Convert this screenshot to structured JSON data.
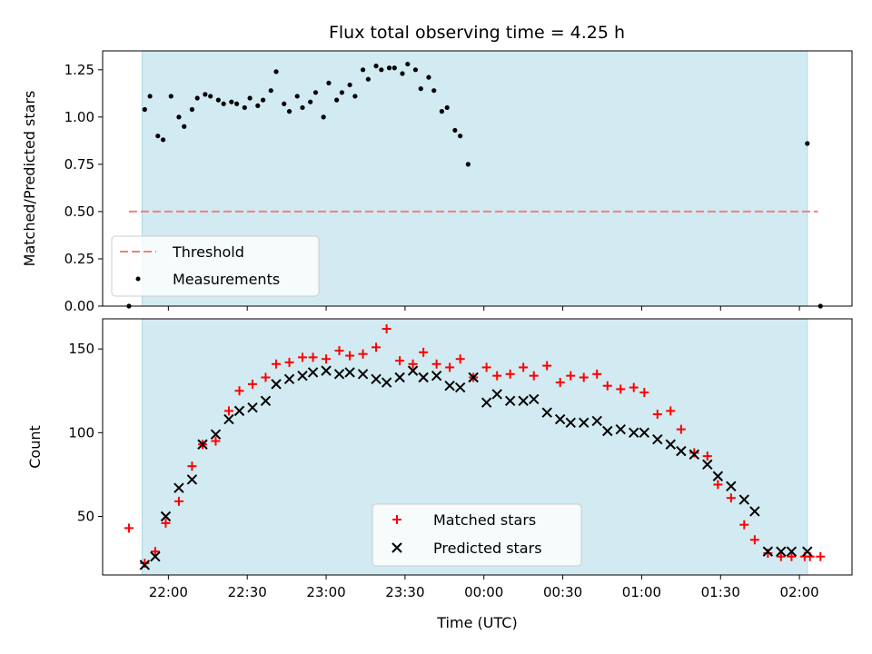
{
  "chart_data": [
    {
      "type": "scatter",
      "title": "Flux total observing time = 4.25 h",
      "ylabel": "Matched/Predicted stars",
      "xlabel": "",
      "xlim": [
        "21:35",
        "02:20"
      ],
      "ylim": [
        0,
        1.35
      ],
      "yticks": [
        "0.00",
        "0.25",
        "0.50",
        "0.75",
        "1.00",
        "1.25"
      ],
      "shaded_interval": [
        "21:50",
        "02:03"
      ],
      "shade_color": "#add8e6",
      "threshold": {
        "value": 0.5,
        "x_range": [
          "21:45",
          "02:07"
        ],
        "color": "#f08080"
      },
      "legend": {
        "position": "lower-left",
        "entries": [
          "Threshold",
          "Measurements"
        ]
      },
      "series": [
        {
          "name": "Measurements",
          "marker": "dot",
          "color": "#000000",
          "x": [
            "21:45",
            "21:51",
            "21:53",
            "21:56",
            "21:58",
            "22:01",
            "22:04",
            "22:06",
            "22:09",
            "22:11",
            "22:14",
            "22:16",
            "22:19",
            "22:21",
            "22:24",
            "22:26",
            "22:29",
            "22:31",
            "22:34",
            "22:36",
            "22:39",
            "22:41",
            "22:44",
            "22:46",
            "22:49",
            "22:51",
            "22:54",
            "22:56",
            "22:59",
            "23:01",
            "23:04",
            "23:06",
            "23:09",
            "23:11",
            "23:14",
            "23:16",
            "23:19",
            "23:21",
            "23:24",
            "23:26",
            "23:29",
            "23:31",
            "23:34",
            "23:36",
            "23:39",
            "23:41",
            "23:44",
            "23:46",
            "23:49",
            "23:51",
            "23:54",
            "02:03",
            "02:08"
          ],
          "y": [
            0.0,
            1.04,
            1.11,
            0.9,
            0.88,
            1.11,
            1.0,
            0.95,
            1.04,
            1.1,
            1.12,
            1.11,
            1.09,
            1.07,
            1.08,
            1.07,
            1.05,
            1.1,
            1.06,
            1.09,
            1.14,
            1.24,
            1.07,
            1.03,
            1.11,
            1.05,
            1.08,
            1.13,
            1.0,
            1.18,
            1.09,
            1.13,
            1.17,
            1.11,
            1.25,
            1.2,
            1.27,
            1.25,
            1.26,
            1.26,
            1.23,
            1.28,
            1.25,
            1.15,
            1.21,
            1.14,
            1.03,
            1.05,
            0.93,
            0.9,
            0.75,
            0.86,
            0.0
          ]
        }
      ]
    },
    {
      "type": "scatter",
      "title": "",
      "ylabel": "Count",
      "xlabel": "Time (UTC)",
      "xlim": [
        "21:35",
        "02:20"
      ],
      "ylim": [
        15,
        168
      ],
      "yticks": [
        "50",
        "100",
        "150"
      ],
      "xticks": [
        "22:00",
        "22:30",
        "23:00",
        "23:30",
        "00:00",
        "00:30",
        "01:00",
        "01:30",
        "02:00"
      ],
      "shaded_interval": [
        "21:50",
        "02:03"
      ],
      "shade_color": "#add8e6",
      "legend": {
        "position": "lower-center",
        "entries": [
          "Matched stars",
          "Predicted stars"
        ]
      },
      "series": [
        {
          "name": "Matched stars",
          "marker": "plus",
          "color": "#ff0000",
          "x": [
            "21:45",
            "21:51",
            "21:55",
            "21:59",
            "22:04",
            "22:09",
            "22:13",
            "22:18",
            "22:23",
            "22:27",
            "22:32",
            "22:37",
            "22:41",
            "22:46",
            "22:51",
            "22:55",
            "23:00",
            "23:05",
            "23:09",
            "23:14",
            "23:19",
            "23:23",
            "23:28",
            "23:33",
            "23:37",
            "23:42",
            "23:47",
            "23:51",
            "23:56",
            "00:01",
            "00:05",
            "00:10",
            "00:15",
            "00:19",
            "00:24",
            "00:29",
            "00:33",
            "00:38",
            "00:43",
            "00:47",
            "00:52",
            "00:57",
            "01:01",
            "01:06",
            "01:11",
            "01:15",
            "01:20",
            "01:25",
            "01:29",
            "01:34",
            "01:39",
            "01:43",
            "01:48",
            "01:53",
            "01:57",
            "02:02",
            "02:04",
            "02:08"
          ],
          "y": [
            43,
            22,
            29,
            46,
            59,
            80,
            93,
            95,
            113,
            125,
            129,
            133,
            141,
            142,
            145,
            145,
            144,
            149,
            146,
            147,
            151,
            162,
            143,
            141,
            148,
            141,
            139,
            144,
            133,
            139,
            134,
            135,
            139,
            134,
            140,
            130,
            134,
            133,
            135,
            128,
            126,
            127,
            124,
            111,
            113,
            102,
            88,
            86,
            69,
            61,
            45,
            36,
            28,
            26,
            26,
            26,
            26,
            26
          ],
          "_note": ""
        },
        {
          "name": "Predicted stars",
          "marker": "x",
          "color": "#000000",
          "x": [
            "21:51",
            "21:55",
            "21:59",
            "22:04",
            "22:09",
            "22:13",
            "22:18",
            "22:23",
            "22:27",
            "22:32",
            "22:37",
            "22:41",
            "22:46",
            "22:51",
            "22:55",
            "23:00",
            "23:05",
            "23:09",
            "23:14",
            "23:19",
            "23:23",
            "23:28",
            "23:33",
            "23:37",
            "23:42",
            "23:47",
            "23:51",
            "23:56",
            "00:01",
            "00:05",
            "00:10",
            "00:15",
            "00:19",
            "00:24",
            "00:29",
            "00:33",
            "00:38",
            "00:43",
            "00:47",
            "00:52",
            "00:57",
            "01:01",
            "01:06",
            "01:11",
            "01:15",
            "01:20",
            "01:25",
            "01:29",
            "01:34",
            "01:39",
            "01:43",
            "01:48",
            "01:53",
            "01:57",
            "02:03"
          ],
          "y": [
            21,
            26,
            50,
            67,
            72,
            93,
            99,
            108,
            113,
            115,
            119,
            129,
            132,
            134,
            136,
            137,
            135,
            136,
            135,
            132,
            130,
            133,
            137,
            133,
            134,
            128,
            127,
            133,
            118,
            123,
            119,
            119,
            120,
            112,
            108,
            106,
            106,
            107,
            101,
            102,
            100,
            100,
            96,
            93,
            89,
            87,
            81,
            74,
            68,
            60,
            53,
            29,
            29,
            29,
            29
          ]
        }
      ]
    }
  ]
}
